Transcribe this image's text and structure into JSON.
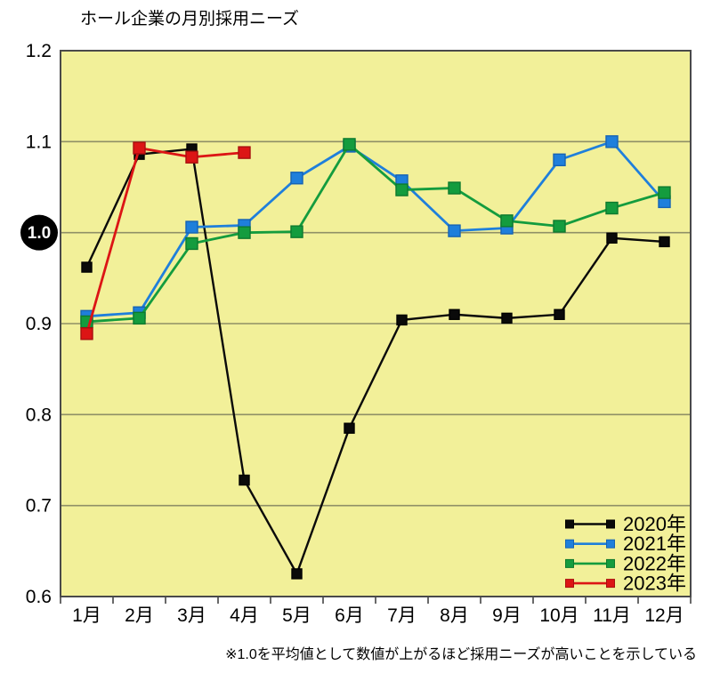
{
  "chart_data": {
    "type": "line",
    "title": "ホール企業の月別採用ニーズ",
    "footnote": "※1.0を平均値として数値が上がるほど採用ニーズが高いことを示している",
    "categories": [
      "1月",
      "2月",
      "3月",
      "4月",
      "5月",
      "6月",
      "7月",
      "8月",
      "9月",
      "10月",
      "11月",
      "12月"
    ],
    "series": [
      {
        "name": "2020年",
        "color": "#0a0a0a",
        "marker_stroke": "#000000",
        "marker_size": 11,
        "line_width": 2.4,
        "values": [
          0.962,
          1.086,
          1.092,
          0.728,
          0.625,
          0.785,
          0.904,
          0.91,
          0.906,
          0.91,
          0.994,
          0.99
        ]
      },
      {
        "name": "2021年",
        "color": "#1f7fdb",
        "marker_stroke": "#1663b4",
        "marker_size": 13,
        "line_width": 2.8,
        "values": [
          0.908,
          0.912,
          1.006,
          1.008,
          1.06,
          1.095,
          1.057,
          1.002,
          1.005,
          1.08,
          1.1,
          1.034
        ]
      },
      {
        "name": "2022年",
        "color": "#149c3e",
        "marker_stroke": "#0d7a2e",
        "marker_size": 13,
        "line_width": 2.8,
        "values": [
          0.902,
          0.906,
          0.988,
          1.0,
          1.001,
          1.097,
          1.047,
          1.049,
          1.013,
          1.007,
          1.027,
          1.044
        ]
      },
      {
        "name": "2023年",
        "color": "#dc1515",
        "marker_stroke": "#a80f0f",
        "marker_size": 13,
        "line_width": 2.8,
        "values": [
          0.889,
          1.093,
          1.083,
          1.088
        ]
      }
    ],
    "xlabel": "",
    "ylabel": "",
    "ylim": [
      0.6,
      1.2
    ],
    "y_ticks": [
      "1.2",
      "1.1",
      "1.0",
      "0.9",
      "0.8",
      "0.7",
      "0.6"
    ],
    "highlight_tick": "1.0",
    "grid": true,
    "legend_position": "bottom-right",
    "colors": {
      "plot_bg": "#f2f099",
      "grid": "#8f8f66",
      "border": "#4a4a4a",
      "tick": "#444444",
      "badge_bg": "#000000",
      "badge_text": "#ffffff",
      "label_text": "#000000"
    }
  }
}
